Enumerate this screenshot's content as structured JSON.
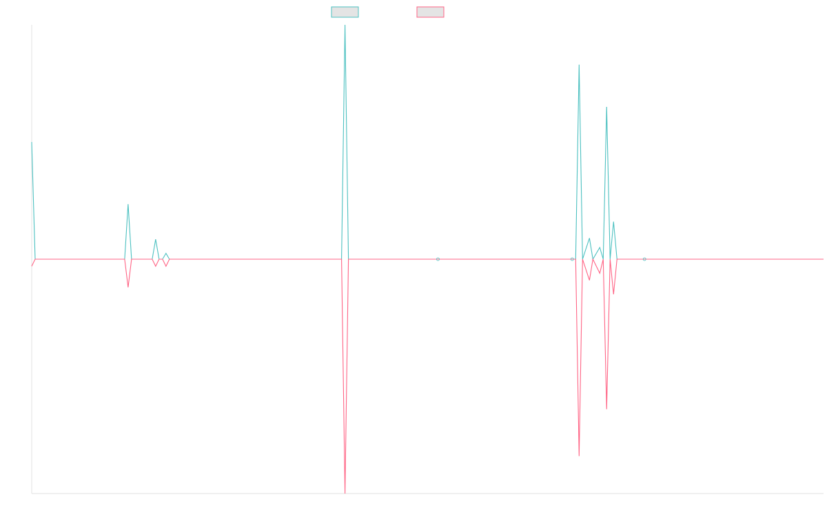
{
  "chart_data": {
    "type": "line",
    "x_count": 231,
    "ylim": [
      -1.0,
      1.0
    ],
    "grid": false,
    "legend": "top-center",
    "series": [
      {
        "color": "#4bc0c0",
        "fill": "#e4e4e4",
        "points": [
          [
            0,
            0.5
          ],
          [
            1,
            0.0
          ],
          [
            27,
            0.0
          ],
          [
            28,
            0.235
          ],
          [
            29,
            0.0
          ],
          [
            35,
            0.0
          ],
          [
            36,
            0.085
          ],
          [
            37,
            0.0
          ],
          [
            38,
            0.0
          ],
          [
            39,
            0.025
          ],
          [
            40,
            0.0
          ],
          [
            89,
            0.0
          ],
          [
            90,
            0.0
          ],
          [
            91,
            1.0
          ],
          [
            92,
            0.0
          ],
          [
            230,
            0.0
          ],
          [
            158,
            0.0
          ],
          [
            158,
            0.0
          ],
          [
            159,
            0.83
          ],
          [
            160,
            0.0
          ],
          [
            162,
            0.09
          ],
          [
            163,
            0.0
          ],
          [
            165,
            0.05
          ],
          [
            166,
            0.0
          ],
          [
            167,
            0.65
          ],
          [
            168,
            0.0
          ],
          [
            169,
            0.16
          ],
          [
            170,
            0.0
          ]
        ]
      },
      {
        "color": "#ff6384",
        "fill": "#e4e4e4",
        "points": [
          [
            0,
            -0.03
          ],
          [
            1,
            0.0
          ],
          [
            27,
            0.0
          ],
          [
            28,
            -0.12
          ],
          [
            29,
            0.0
          ],
          [
            35,
            0.0
          ],
          [
            36,
            -0.03
          ],
          [
            37,
            0.0
          ],
          [
            38,
            0.0
          ],
          [
            39,
            -0.03
          ],
          [
            40,
            0.0
          ],
          [
            90,
            0.0
          ],
          [
            91,
            -1.0
          ],
          [
            92,
            0.0
          ],
          [
            158,
            0.0
          ],
          [
            159,
            -0.84
          ],
          [
            160,
            0.0
          ],
          [
            162,
            -0.09
          ],
          [
            163,
            0.0
          ],
          [
            165,
            -0.06
          ],
          [
            166,
            0.0
          ],
          [
            167,
            -0.64
          ],
          [
            168,
            0.0
          ],
          [
            169,
            -0.15
          ],
          [
            170,
            0.0
          ],
          [
            230,
            0.0
          ]
        ]
      }
    ]
  }
}
